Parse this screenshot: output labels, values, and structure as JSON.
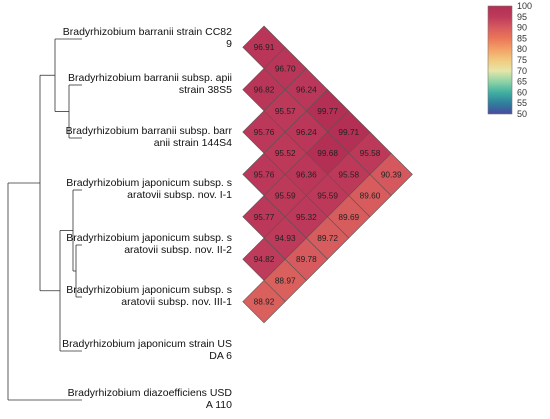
{
  "chart_data": {
    "type": "heatmap",
    "taxa": [
      "Bradyrhizobium barranii strain CC82\n9",
      "Bradyrhizobium barranii subsp. apii\nstrain 38S5",
      "Bradyrhizobium barranii subsp. barr\nanii strain 144S4",
      "Bradyrhizobium japonicum subsp. s\naratovii subsp. nov. I-1",
      "Bradyrhizobium japonicum subsp. s\naratovii subsp. nov. II-2",
      "Bradyrhizobium japonicum subsp. s\naratovii subsp. nov. III-1",
      "Bradyrhizobium japonicum strain US\nDA 6",
      "Bradyrhizobium diazoefficiens USD\nA 110"
    ],
    "cells": [
      {
        "row": 0,
        "col": 1,
        "value": 96.91,
        "label": "96.91"
      },
      {
        "row": 1,
        "col": 2,
        "value": 96.82,
        "label": "96.82"
      },
      {
        "row": 0,
        "col": 2,
        "value": 96.7,
        "label": "96.70"
      },
      {
        "row": 2,
        "col": 3,
        "value": 95.76,
        "label": "95.76"
      },
      {
        "row": 1,
        "col": 3,
        "value": 95.57,
        "label": "95.57"
      },
      {
        "row": 0,
        "col": 3,
        "value": 96.24,
        "label": "96.24"
      },
      {
        "row": 3,
        "col": 4,
        "value": 95.76,
        "label": "95.76"
      },
      {
        "row": 2,
        "col": 4,
        "value": 95.52,
        "label": "95.52"
      },
      {
        "row": 1,
        "col": 4,
        "value": 96.24,
        "label": "96.24"
      },
      {
        "row": 0,
        "col": 4,
        "value": 99.77,
        "label": "99.77"
      },
      {
        "row": 4,
        "col": 5,
        "value": 95.77,
        "label": "95.77"
      },
      {
        "row": 3,
        "col": 5,
        "value": 95.59,
        "label": "95.59"
      },
      {
        "row": 2,
        "col": 5,
        "value": 96.36,
        "label": "96.36"
      },
      {
        "row": 1,
        "col": 5,
        "value": 99.68,
        "label": "99.68"
      },
      {
        "row": 0,
        "col": 5,
        "value": 99.71,
        "label": "99.71"
      },
      {
        "row": 5,
        "col": 6,
        "value": 94.82,
        "label": "94.82"
      },
      {
        "row": 4,
        "col": 6,
        "value": 94.93,
        "label": "94.93"
      },
      {
        "row": 3,
        "col": 6,
        "value": 95.32,
        "label": "95.32"
      },
      {
        "row": 2,
        "col": 6,
        "value": 95.59,
        "label": "95.59"
      },
      {
        "row": 1,
        "col": 6,
        "value": 95.58,
        "label": "95.58"
      },
      {
        "row": 0,
        "col": 6,
        "value": 95.58,
        "label": "95.58"
      },
      {
        "row": 6,
        "col": 7,
        "value": 88.92,
        "label": "88.92"
      },
      {
        "row": 5,
        "col": 7,
        "value": 88.97,
        "label": "88.97"
      },
      {
        "row": 4,
        "col": 7,
        "value": 89.78,
        "label": "89.78"
      },
      {
        "row": 3,
        "col": 7,
        "value": 89.72,
        "label": "89.72"
      },
      {
        "row": 2,
        "col": 7,
        "value": 89.69,
        "label": "89.69"
      },
      {
        "row": 1,
        "col": 7,
        "value": 89.6,
        "label": "89.60"
      },
      {
        "row": 0,
        "col": 7,
        "value": 90.39,
        "label": "90.39"
      }
    ],
    "colorbar": {
      "min": 50,
      "max": 100,
      "ticks": [
        "100",
        "95",
        "90",
        "85",
        "80",
        "75",
        "70",
        "65",
        "60",
        "55",
        "50"
      ],
      "colors": [
        "#4a4aa0",
        "#2f7f9d",
        "#41b0a0",
        "#8fd3a6",
        "#e6e6a8",
        "#f2c97e",
        "#f3a066",
        "#ea7758",
        "#d65a5e",
        "#be3a5b",
        "#b22f54"
      ]
    },
    "legend_position": "top-right",
    "dendrogram": "rooted tree on left; taxa 1-3 form one clade, taxa 4-6 a second clade, joined with taxon 7; taxon 8 is the outgroup"
  }
}
